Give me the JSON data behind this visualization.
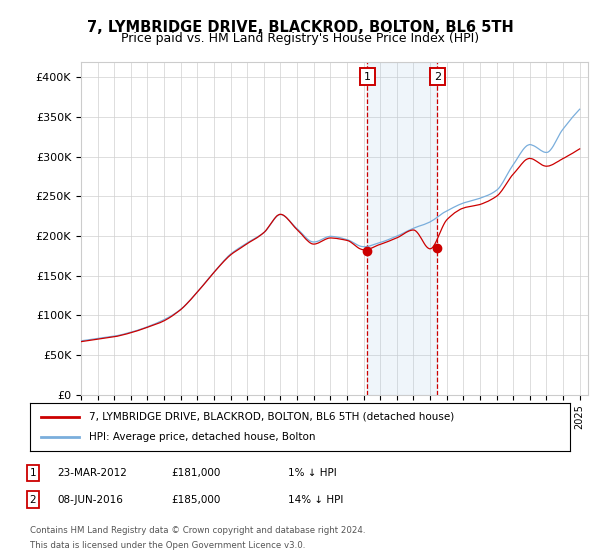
{
  "title": "7, LYMBRIDGE DRIVE, BLACKROD, BOLTON, BL6 5TH",
  "subtitle": "Price paid vs. HM Land Registry's House Price Index (HPI)",
  "legend_line1": "7, LYMBRIDGE DRIVE, BLACKROD, BOLTON, BL6 5TH (detached house)",
  "legend_line2": "HPI: Average price, detached house, Bolton",
  "ann1_date": "23-MAR-2012",
  "ann1_price": "£181,000",
  "ann1_diff": "1% ↓ HPI",
  "ann2_date": "08-JUN-2016",
  "ann2_price": "£185,000",
  "ann2_diff": "14% ↓ HPI",
  "footnote1": "Contains HM Land Registry data © Crown copyright and database right 2024.",
  "footnote2": "This data is licensed under the Open Government Licence v3.0.",
  "ylim": [
    0,
    420000
  ],
  "yticks": [
    0,
    50000,
    100000,
    150000,
    200000,
    250000,
    300000,
    350000,
    400000
  ],
  "ytick_labels": [
    "£0",
    "£50K",
    "£100K",
    "£150K",
    "£200K",
    "£250K",
    "£300K",
    "£350K",
    "£400K"
  ],
  "hpi_color": "#7aaedc",
  "price_color": "#cc0000",
  "marker1_year": 2012.22,
  "marker1_val": 181000,
  "marker2_year": 2016.44,
  "marker2_val": 185000,
  "shade_start": 2012.22,
  "shade_end": 2016.44,
  "xmin": 1995,
  "xmax": 2025.5
}
